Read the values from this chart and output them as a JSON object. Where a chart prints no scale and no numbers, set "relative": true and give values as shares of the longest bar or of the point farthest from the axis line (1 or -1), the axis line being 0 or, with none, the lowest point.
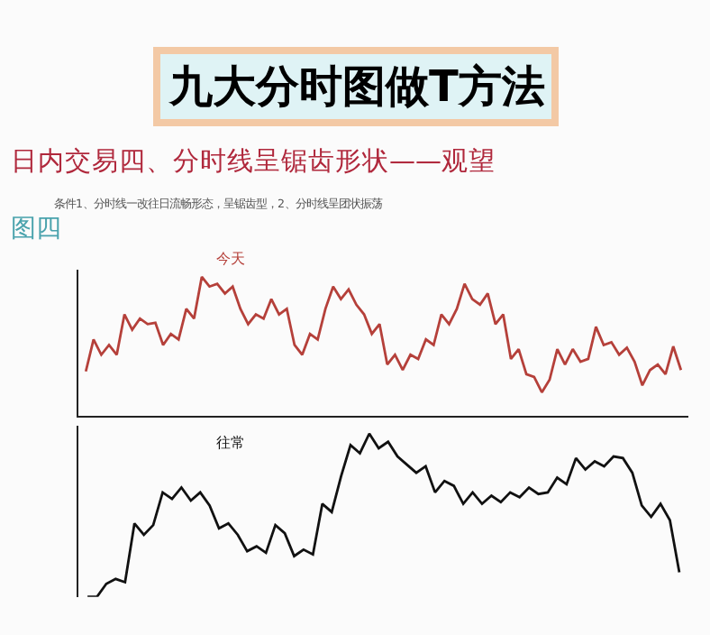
{
  "chart_data": [
    {
      "type": "line",
      "title": "九大分时图做T方法",
      "subtitle": "日内交易四、分时线呈锯齿形状——观望",
      "annotations": [
        "条件1、分时线一改往日流畅形态，呈锯齿型，2、分时线呈团状振荡",
        "图四"
      ],
      "relative": true,
      "marker": "none",
      "legend": false,
      "categories": [
        null,
        null,
        null,
        null,
        null,
        null,
        null,
        null,
        null,
        null,
        null,
        null,
        null,
        null,
        null,
        null,
        null,
        null,
        null,
        null,
        null,
        null,
        null,
        null,
        null,
        null,
        null,
        null,
        null,
        null,
        null,
        null,
        null,
        null,
        null,
        null,
        null,
        null,
        null,
        null,
        null,
        null,
        null,
        null,
        null,
        null,
        null,
        null,
        null,
        null,
        null,
        null,
        null,
        null,
        null,
        null,
        null,
        null,
        null,
        null,
        null,
        null,
        null,
        null,
        null,
        null,
        null,
        null,
        null,
        null,
        null,
        null,
        null,
        null,
        null,
        null,
        null,
        null
      ],
      "series": [
        {
          "name": "今天",
          "color": "#b5403a",
          "values": [
            0.32,
            0.55,
            0.44,
            0.51,
            0.44,
            0.73,
            0.62,
            0.7,
            0.66,
            0.67,
            0.51,
            0.59,
            0.55,
            0.77,
            0.7,
            1,
            0.93,
            0.95,
            0.88,
            0.93,
            0.77,
            0.66,
            0.73,
            0.7,
            0.84,
            0.73,
            0.77,
            0.51,
            0.44,
            0.59,
            0.55,
            0.77,
            0.93,
            0.84,
            0.91,
            0.8,
            0.73,
            0.59,
            0.66,
            0.37,
            0.44,
            0.33,
            0.44,
            0.41,
            0.55,
            0.51,
            0.73,
            0.66,
            0.77,
            0.95,
            0.84,
            0.8,
            0.88,
            0.66,
            0.73,
            0.41,
            0.48,
            0.3,
            0.28,
            0.17,
            0.26,
            0.48,
            0.37,
            0.48,
            0.39,
            0.41,
            0.64,
            0.51,
            0.53,
            0.44,
            0.49,
            0.39,
            0.22,
            0.33,
            0.37,
            0.3,
            0.5,
            0.33
          ]
        }
      ]
    },
    {
      "type": "line",
      "relative": true,
      "marker": "none",
      "legend": false,
      "categories": [
        null,
        null,
        null,
        null,
        null,
        null,
        null,
        null,
        null,
        null,
        null,
        null,
        null,
        null,
        null,
        null,
        null,
        null,
        null,
        null,
        null,
        null,
        null,
        null,
        null,
        null,
        null,
        null,
        null,
        null,
        null,
        null,
        null,
        null,
        null,
        null,
        null,
        null,
        null,
        null,
        null,
        null,
        null,
        null,
        null,
        null,
        null,
        null,
        null,
        null,
        null,
        null,
        null,
        null,
        null,
        null,
        null,
        null,
        null,
        null,
        null,
        null,
        null,
        null
      ],
      "series": [
        {
          "name": "往常",
          "color": "#111111",
          "values": [
            0,
            0,
            0.08,
            0.11,
            0.09,
            0.45,
            0.38,
            0.44,
            0.64,
            0.6,
            0.67,
            0.59,
            0.64,
            0.56,
            0.42,
            0.45,
            0.38,
            0.28,
            0.31,
            0.27,
            0.44,
            0.39,
            0.25,
            0.29,
            0.26,
            0.57,
            0.52,
            0.74,
            0.93,
            0.88,
            1,
            0.91,
            0.95,
            0.86,
            0.81,
            0.76,
            0.8,
            0.64,
            0.71,
            0.68,
            0.57,
            0.64,
            0.57,
            0.62,
            0.58,
            0.64,
            0.61,
            0.67,
            0.63,
            0.64,
            0.73,
            0.69,
            0.85,
            0.78,
            0.83,
            0.8,
            0.86,
            0.85,
            0.76,
            0.56,
            0.49,
            0.57,
            0.47,
            0.15
          ]
        }
      ]
    }
  ]
}
